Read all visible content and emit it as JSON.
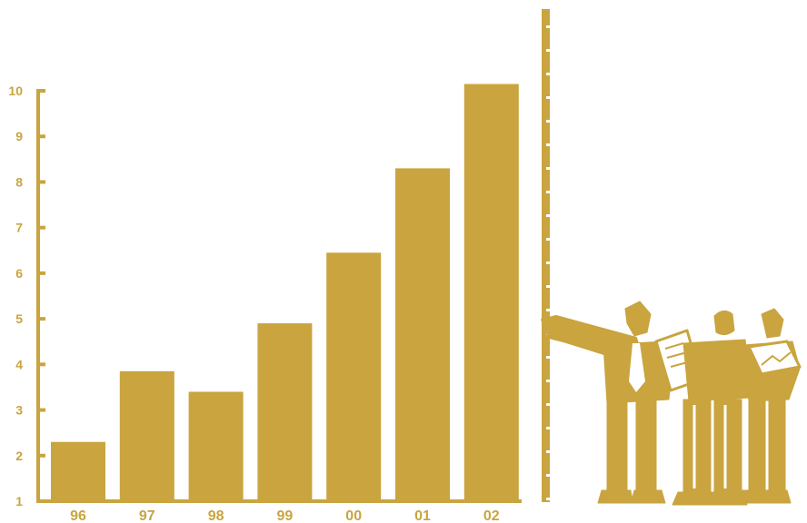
{
  "colors": {
    "gold": "#c9a43f",
    "background": "#ffffff"
  },
  "chart_data": {
    "type": "bar",
    "title": "",
    "xlabel": "",
    "ylabel": "",
    "categories": [
      "96",
      "97",
      "98",
      "99",
      "00",
      "01",
      "02"
    ],
    "values": [
      2.3,
      3.85,
      3.4,
      4.9,
      6.45,
      8.3,
      10.15
    ],
    "ylim": [
      1,
      10
    ],
    "yticks": [
      "1",
      "2",
      "3",
      "4",
      "5",
      "6",
      "7",
      "8",
      "9",
      "10"
    ],
    "grid": false,
    "legend": "none"
  },
  "illustration": {
    "name": "businesspeople-presenting-clipart"
  }
}
